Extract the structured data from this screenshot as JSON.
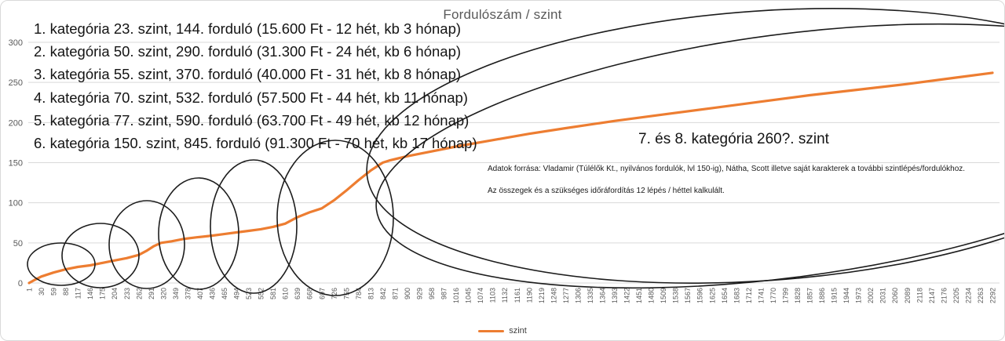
{
  "chart_data": {
    "type": "line",
    "title": "Fordulószám / szint",
    "xlabel": "",
    "ylabel": "",
    "series_name": "szint",
    "line_color": "#ED7D31",
    "grid_color": "#d9d9d9",
    "tick_color": "#595959",
    "grid_on": true,
    "legend_position": "bottom-center",
    "xlim": [
      1,
      2292
    ],
    "ylim": [
      0,
      300
    ],
    "y_ticks": [
      0,
      50,
      100,
      150,
      200,
      250,
      300
    ],
    "x_ticks": [
      1,
      30,
      59,
      88,
      117,
      146,
      175,
      204,
      233,
      262,
      291,
      320,
      349,
      378,
      407,
      436,
      465,
      494,
      523,
      552,
      581,
      610,
      639,
      668,
      697,
      726,
      755,
      784,
      813,
      842,
      871,
      900,
      929,
      958,
      987,
      1016,
      1045,
      1074,
      1103,
      1132,
      1161,
      1190,
      1219,
      1248,
      1277,
      1306,
      1335,
      1364,
      1393,
      1422,
      1451,
      1480,
      1509,
      1538,
      1567,
      1596,
      1625,
      1654,
      1683,
      1712,
      1741,
      1770,
      1799,
      1828,
      1857,
      1886,
      1915,
      1944,
      1973,
      2002,
      2031,
      2060,
      2089,
      2118,
      2147,
      2176,
      2205,
      2234,
      2263,
      2292
    ],
    "points": [
      [
        1,
        0
      ],
      [
        15,
        4
      ],
      [
        30,
        8
      ],
      [
        59,
        13
      ],
      [
        88,
        17
      ],
      [
        117,
        20
      ],
      [
        146,
        22
      ],
      [
        175,
        25
      ],
      [
        204,
        28
      ],
      [
        233,
        31
      ],
      [
        262,
        35
      ],
      [
        280,
        40
      ],
      [
        298,
        46
      ],
      [
        315,
        50
      ],
      [
        340,
        52
      ],
      [
        370,
        55
      ],
      [
        400,
        57
      ],
      [
        436,
        59
      ],
      [
        465,
        61
      ],
      [
        494,
        63
      ],
      [
        523,
        65
      ],
      [
        552,
        67
      ],
      [
        581,
        70
      ],
      [
        610,
        74
      ],
      [
        639,
        82
      ],
      [
        668,
        88
      ],
      [
        697,
        93
      ],
      [
        726,
        103
      ],
      [
        755,
        115
      ],
      [
        784,
        128
      ],
      [
        813,
        140
      ],
      [
        842,
        150
      ],
      [
        860,
        153
      ],
      [
        900,
        158
      ],
      [
        958,
        164
      ],
      [
        1016,
        170
      ],
      [
        1103,
        178
      ],
      [
        1190,
        186
      ],
      [
        1277,
        193
      ],
      [
        1393,
        202
      ],
      [
        1509,
        210
      ],
      [
        1625,
        218
      ],
      [
        1741,
        226
      ],
      [
        1857,
        234
      ],
      [
        1973,
        241
      ],
      [
        2089,
        248
      ],
      [
        2205,
        256
      ],
      [
        2292,
        262
      ]
    ],
    "key_milestones": [
      {
        "kategoria": 1,
        "szint": 23,
        "fordulo": 144
      },
      {
        "kategoria": 2,
        "szint": 50,
        "fordulo": 290
      },
      {
        "kategoria": 3,
        "szint": 55,
        "fordulo": 370
      },
      {
        "kategoria": 4,
        "szint": 70,
        "fordulo": 532
      },
      {
        "kategoria": 5,
        "szint": 77,
        "fordulo": 590
      },
      {
        "kategoria": 6,
        "szint": 150,
        "fordulo": 845
      },
      {
        "kategoria": "7-8",
        "szint": "260?",
        "fordulo": null
      }
    ]
  },
  "annotations": {
    "categories": [
      "1. kategória 23. szint, 144. forduló (15.600 Ft - 12 hét, kb 3 hónap)",
      "2. kategória 50. szint, 290. forduló (31.300 Ft - 24 hét, kb 6 hónap)",
      "3. kategória 55. szint, 370. forduló (40.000 Ft - 31 hét, kb 8 hónap)",
      "4. kategória 70. szint, 532. forduló (57.500 Ft - 44 hét, kb 11 hónap)",
      "5. kategória 77. szint, 590. forduló (63.700 Ft - 49 hét, kb 12 hónap)",
      "6. kategória 150. szint, 845. forduló (91.300 Ft - 70 hét, kb 17 hónap)"
    ],
    "big_note": "7. és 8. kategória 260?. szint",
    "source_line1": "Adatok forrása: Vladamir (Túlélők Kt., nyilvános fordulók, lvl 150-ig), Nátha, Scott illetve saját karakterek a további szintlépés/fordulókhoz.",
    "source_line2": "Az összegek és a szükséges időráfordítás 12 lépés / héttel kalkulált."
  },
  "legend": {
    "label": "szint",
    "color": "#ED7D31"
  }
}
